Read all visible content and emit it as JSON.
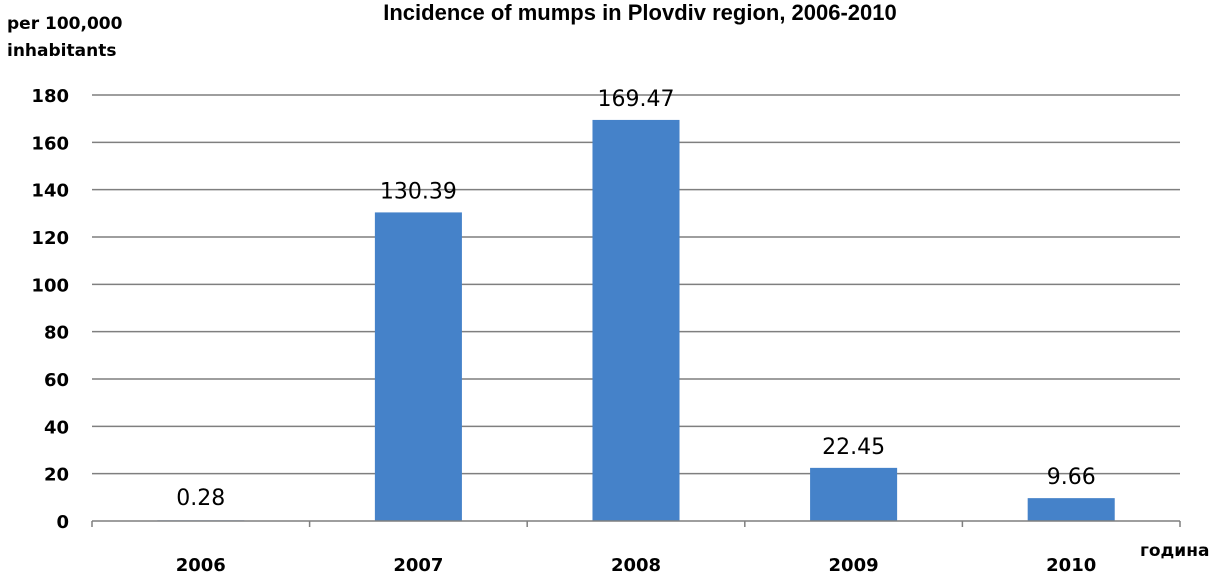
{
  "chart_data": {
    "type": "bar",
    "title": "Incidence of mumps in Plovdiv region, 2006-2010",
    "ylabel_lines": [
      "per 100,000",
      "inhabitants"
    ],
    "xlabel": "година",
    "categories": [
      "2006",
      "2007",
      "2008",
      "2009",
      "2010"
    ],
    "values": [
      0.28,
      130.39,
      169.47,
      22.45,
      9.66
    ],
    "data_labels": [
      "0.28",
      "130.39",
      "169.47",
      "22.45",
      "9.66"
    ],
    "ylim": [
      0,
      180
    ],
    "yticks": [
      0,
      20,
      40,
      60,
      80,
      100,
      120,
      140,
      160,
      180
    ],
    "grid": true,
    "legend": "none",
    "bar_color": "#4582c9",
    "grid_color": "#7f7f7f"
  }
}
